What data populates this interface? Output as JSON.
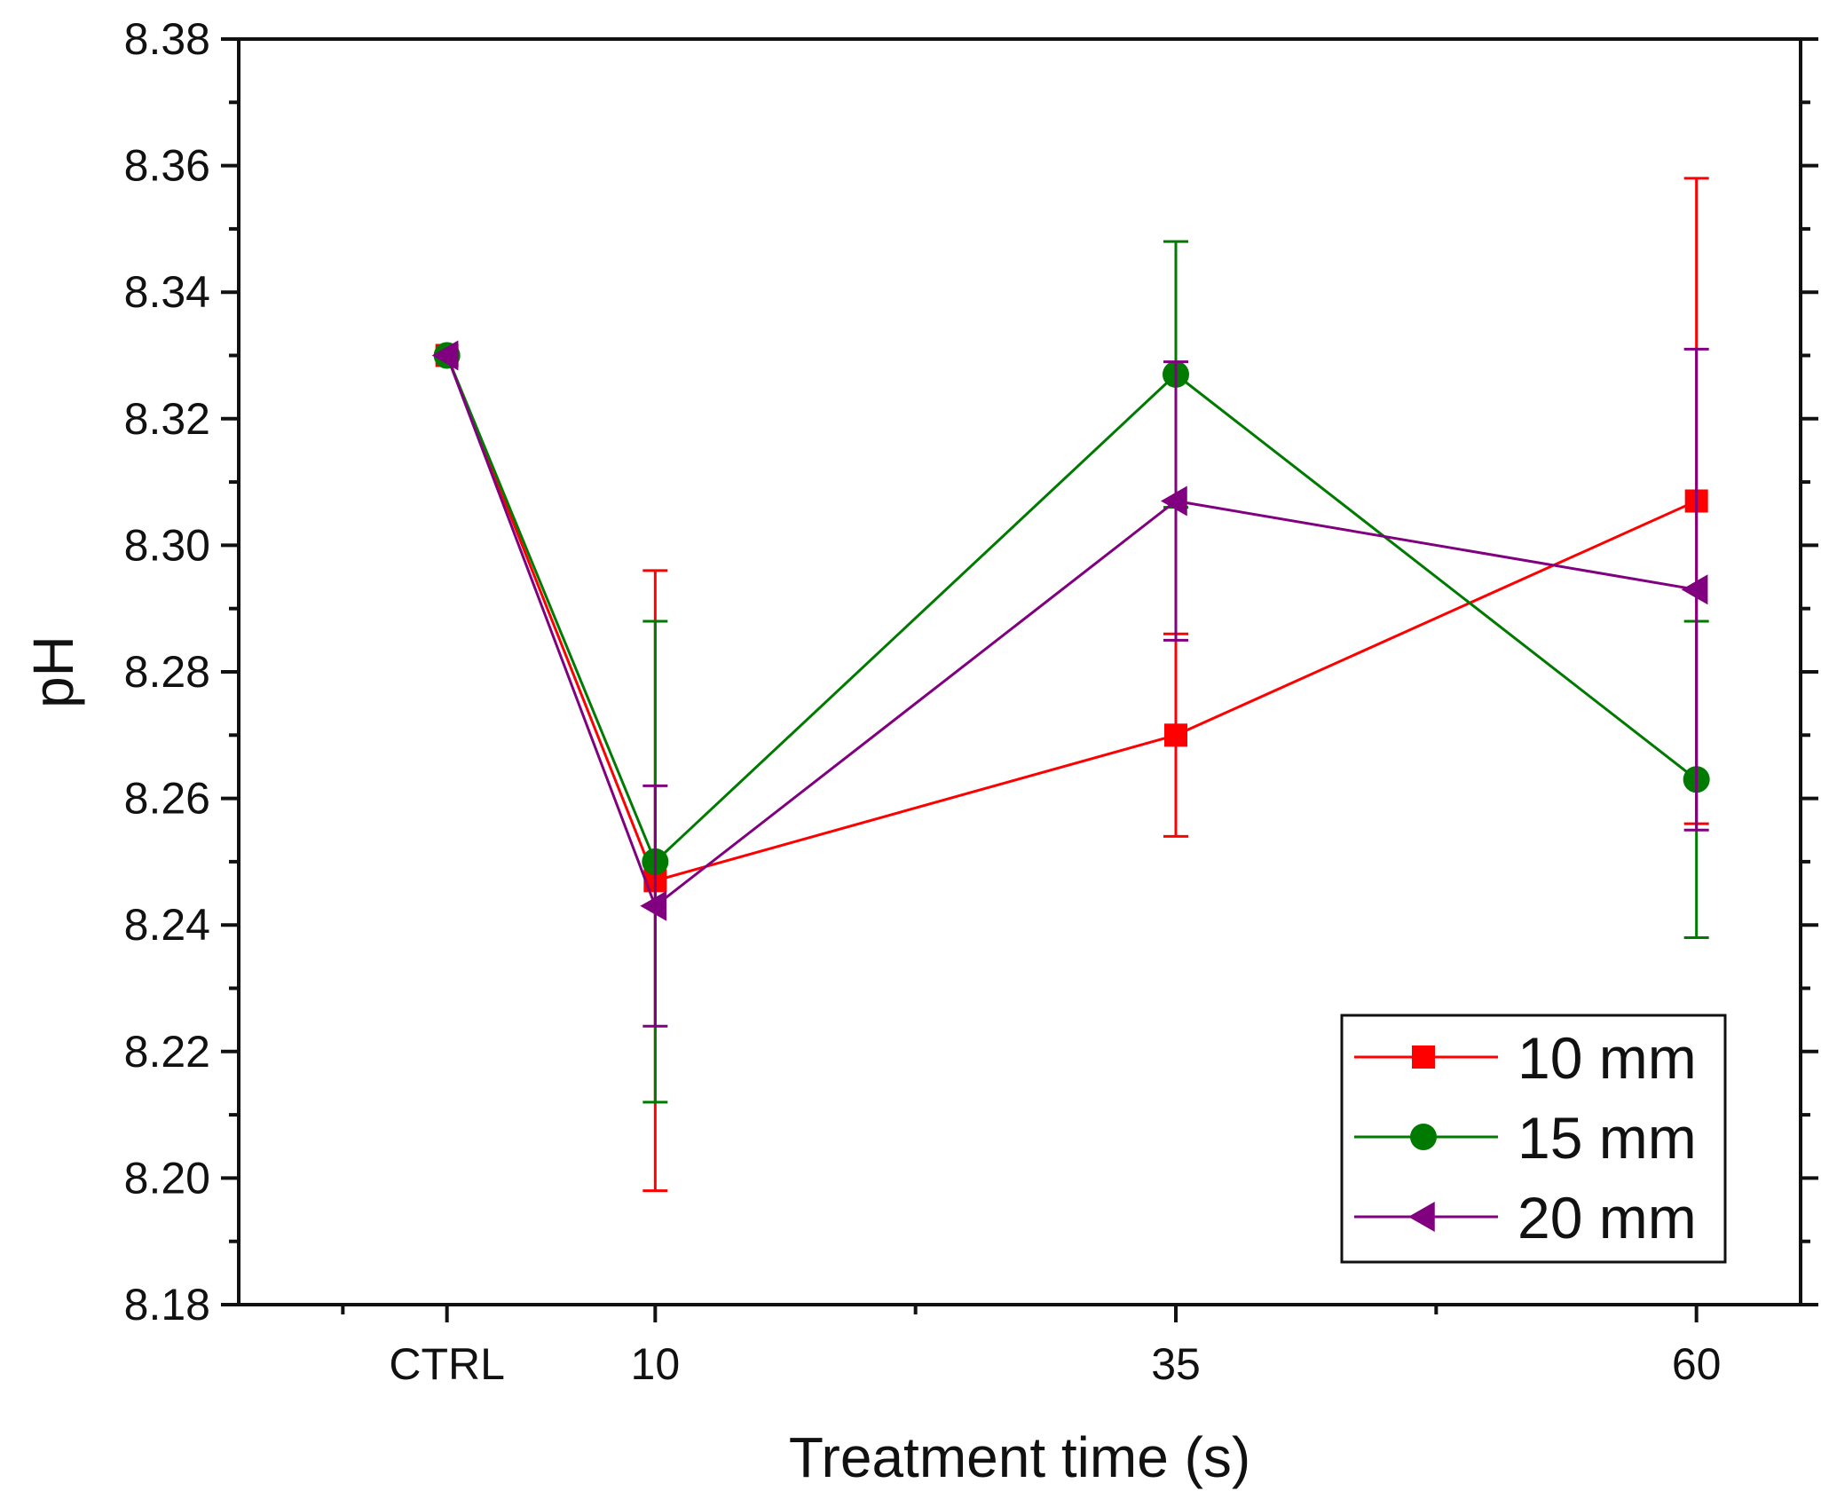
{
  "chart_data": {
    "type": "line",
    "title": "",
    "xlabel": "Treatment time (s)",
    "ylabel": "pH",
    "categories": [
      "CTRL",
      "10",
      "35",
      "60"
    ],
    "x": [
      0,
      10,
      35,
      60
    ],
    "xlim": [
      -10,
      65
    ],
    "ylim": [
      8.18,
      8.38
    ],
    "yticks": [
      "8.18",
      "8.20",
      "8.22",
      "8.24",
      "8.26",
      "8.28",
      "8.30",
      "8.32",
      "8.34",
      "8.36",
      "8.38"
    ],
    "grid": false,
    "legend_position": "bottom-right",
    "series": [
      {
        "name": "10 mm",
        "color": "#ff0000",
        "marker": "square",
        "values": [
          8.33,
          8.247,
          8.27,
          8.307
        ],
        "errors": [
          0,
          0.049,
          0.016,
          0.051
        ]
      },
      {
        "name": "15 mm",
        "color": "#007a00",
        "marker": "circle",
        "values": [
          8.33,
          8.25,
          8.327,
          8.263
        ],
        "errors": [
          0,
          0.038,
          0.021,
          0.025
        ]
      },
      {
        "name": "20 mm",
        "color": "#800080",
        "marker": "triangle-left",
        "values": [
          8.33,
          8.243,
          8.307,
          8.293
        ],
        "errors": [
          0,
          0.019,
          0.022,
          0.038
        ]
      }
    ]
  }
}
